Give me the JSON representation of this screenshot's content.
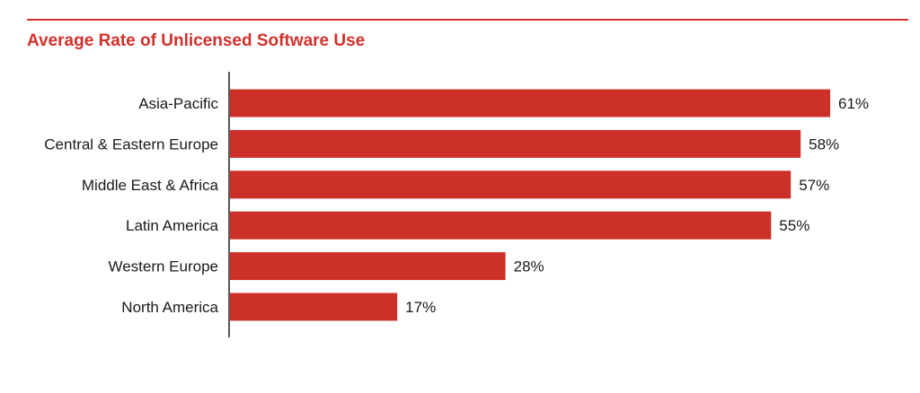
{
  "colors": {
    "accent": "#d2312b",
    "bar": "#cd3028",
    "axis": "#222222",
    "text": "#1a1a1a"
  },
  "chart_data": {
    "type": "bar",
    "orientation": "horizontal",
    "title": "Average Rate of Unlicensed Software Use",
    "xlabel": "",
    "ylabel": "",
    "xlim": [
      0,
      61
    ],
    "grid": false,
    "categories": [
      "Asia-Pacific",
      "Central & Eastern Europe",
      "Middle East & Africa",
      "Latin America",
      "Western Europe",
      "North America"
    ],
    "values": [
      61,
      58,
      57,
      55,
      28,
      17
    ],
    "value_labels": [
      "61%",
      "58%",
      "57%",
      "55%",
      "28%",
      "17%"
    ]
  }
}
